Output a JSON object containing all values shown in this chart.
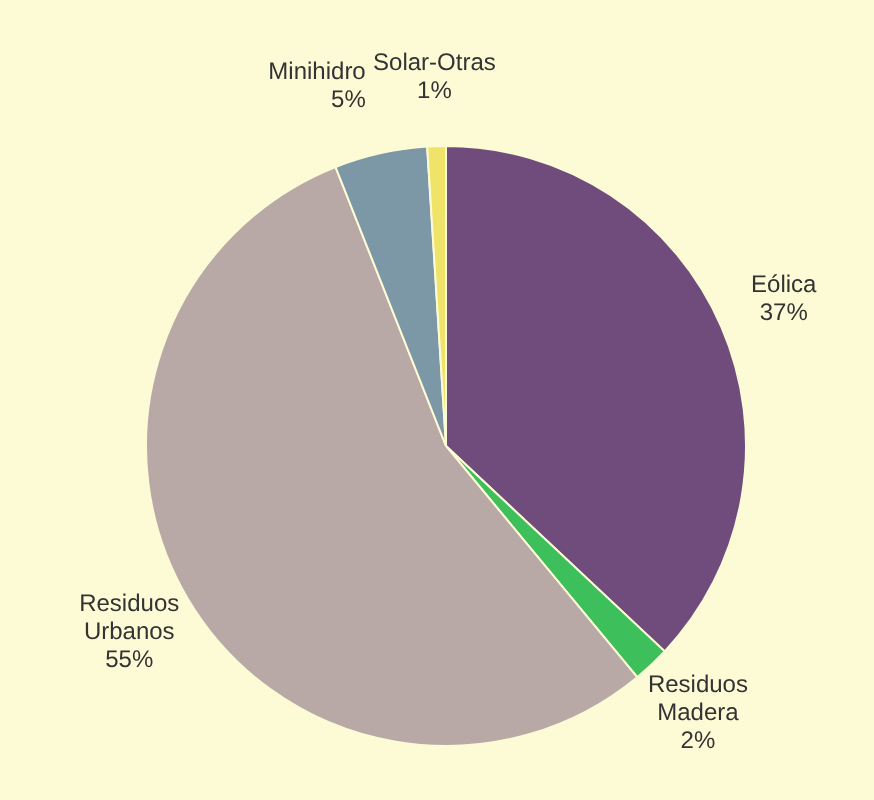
{
  "chart_data": {
    "type": "pie",
    "categories": [
      "Eólica",
      "Residuos Madera",
      "Residuos Urbanos",
      "Minihidro",
      "Solar-Otras"
    ],
    "values": [
      37,
      2,
      55,
      5,
      1
    ],
    "colors": [
      "#6f4c7c",
      "#3dbf5c",
      "#b9a9a6",
      "#7c97a6",
      "#efe36a"
    ],
    "value_labels": [
      "37%",
      "2%",
      "55%",
      "5%",
      "1%"
    ]
  }
}
